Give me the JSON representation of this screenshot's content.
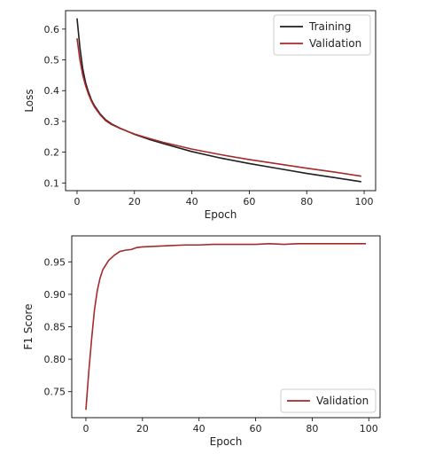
{
  "chart_data": [
    {
      "type": "line",
      "xlabel": "Epoch",
      "ylabel": "Loss",
      "xlim": [
        -4,
        104
      ],
      "ylim": [
        0.075,
        0.66
      ],
      "xticks": [
        0,
        20,
        40,
        60,
        80,
        100
      ],
      "yticks": [
        0.1,
        0.2,
        0.3,
        0.4,
        0.5,
        0.6
      ],
      "ytick_labels": [
        "0.1",
        "0.2",
        "0.3",
        "0.4",
        "0.5",
        "0.6"
      ],
      "grid": false,
      "legend": "top-right",
      "series": [
        {
          "name": "Training",
          "color": "#1f1f1f",
          "x": [
            0,
            1,
            2,
            3,
            4,
            5,
            6,
            8,
            10,
            12,
            15,
            20,
            25,
            30,
            40,
            50,
            60,
            70,
            80,
            90,
            99
          ],
          "y": [
            0.635,
            0.54,
            0.47,
            0.425,
            0.395,
            0.37,
            0.352,
            0.325,
            0.305,
            0.292,
            0.278,
            0.258,
            0.242,
            0.228,
            0.202,
            0.181,
            0.163,
            0.147,
            0.131,
            0.117,
            0.104
          ]
        },
        {
          "name": "Validation",
          "color": "#a52a2a",
          "x": [
            0,
            1,
            2,
            3,
            4,
            5,
            6,
            8,
            10,
            12,
            15,
            20,
            25,
            30,
            40,
            50,
            60,
            70,
            80,
            90,
            99
          ],
          "y": [
            0.57,
            0.5,
            0.45,
            0.415,
            0.388,
            0.366,
            0.348,
            0.322,
            0.302,
            0.29,
            0.277,
            0.259,
            0.245,
            0.232,
            0.21,
            0.192,
            0.176,
            0.162,
            0.148,
            0.135,
            0.122
          ]
        }
      ]
    },
    {
      "type": "line",
      "xlabel": "Epoch",
      "ylabel": "F1 Score",
      "xlim": [
        -5,
        104
      ],
      "ylim": [
        0.71,
        0.99
      ],
      "xticks": [
        0,
        20,
        40,
        60,
        80,
        100
      ],
      "yticks": [
        0.75,
        0.8,
        0.85,
        0.9,
        0.95
      ],
      "ytick_labels": [
        "0.75",
        "0.80",
        "0.85",
        "0.90",
        "0.95"
      ],
      "grid": false,
      "legend": "bottom-right",
      "series": [
        {
          "name": "Validation",
          "color": "#a52a2a",
          "x": [
            0,
            1,
            2,
            3,
            4,
            5,
            6,
            7,
            8,
            10,
            12,
            14,
            16,
            18,
            20,
            25,
            30,
            35,
            40,
            45,
            50,
            55,
            60,
            65,
            70,
            75,
            80,
            85,
            90,
            95,
            99
          ],
          "y": [
            0.722,
            0.78,
            0.83,
            0.875,
            0.905,
            0.925,
            0.938,
            0.945,
            0.952,
            0.96,
            0.966,
            0.968,
            0.969,
            0.972,
            0.973,
            0.974,
            0.975,
            0.976,
            0.976,
            0.977,
            0.977,
            0.977,
            0.977,
            0.978,
            0.977,
            0.978,
            0.978,
            0.978,
            0.978,
            0.978,
            0.978
          ]
        }
      ]
    }
  ]
}
